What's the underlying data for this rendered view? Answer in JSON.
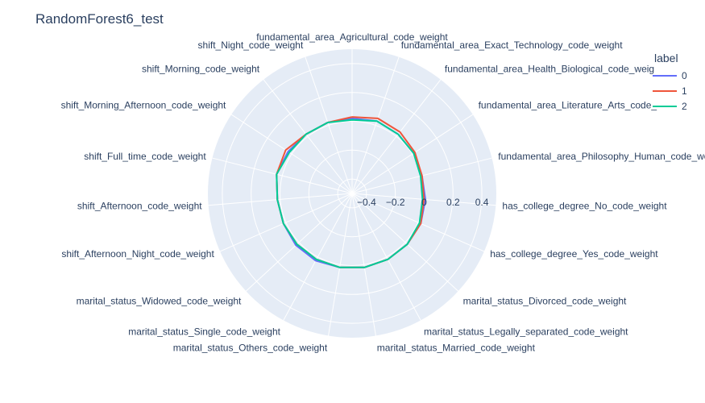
{
  "title": "RandomForest6_test",
  "legend": {
    "title": "label",
    "items": [
      {
        "name": "0",
        "color": "#636efa"
      },
      {
        "name": "1",
        "color": "#EF553B"
      },
      {
        "name": "2",
        "color": "#00cc96"
      }
    ]
  },
  "colors": {
    "plot_bg": "#e5ecf6",
    "grid": "#ffffff",
    "text": "#2a3f5f"
  },
  "chart_data": {
    "type": "polar-line",
    "title": "RandomForest6_test",
    "radial_range": [
      -0.5,
      0.5
    ],
    "radial_ticks": [
      -0.4,
      -0.2,
      0,
      0.2,
      0.4
    ],
    "radial_tick_labels": [
      "−0.4",
      "−0.2",
      "0",
      "0.2",
      "0.4"
    ],
    "angular_direction": "clockwise",
    "categories": [
      "fundamental_area_Agricultural_code_weight",
      "fundamental_area_Exact_Technology_code_weight",
      "fundamental_area_Health_Biological_code_weight",
      "fundamental_area_Literature_Arts_code_weight",
      "fundamental_area_Philosophy_Human_code_weight",
      "has_college_degree_No_code_weight",
      "has_college_degree_Yes_code_weight",
      "marital_status_Divorced_code_weight",
      "marital_status_Legally_separated_code_weight",
      "marital_status_Married_code_weight",
      "marital_status_Others_code_weight",
      "marital_status_Single_code_weight",
      "marital_status_Widowed_code_weight",
      "shift_Afternoon_Night_code_weight",
      "shift_Afternoon_code_weight",
      "shift_Full_time_code_weight",
      "shift_Morning_Afternoon_code_weight",
      "shift_Morning_code_weight",
      "shift_Night_code_weight"
    ],
    "category_labels": [
      "fundamental_area_Agricultural_code_weight",
      "fundamental_area_Exact_Technology_code_weight",
      "fundamental_area_Health_Biological_code_weig",
      "fundamental_area_Literature_Arts_code_",
      "fundamental_area_Philosophy_Human_code_we",
      "has_college_degree_No_code_weight",
      "has_college_degree_Yes_code_weight",
      "marital_status_Divorced_code_weight",
      "marital_status_Legally_separated_code_weight",
      "marital_status_Married_code_weight",
      "marital_status_Others_code_weight",
      "marital_status_Single_code_weight",
      "marital_status_Widowed_code_weight",
      "shift_Afternoon_Night_code_weight",
      "shift_Afternoon_code_weight",
      "shift_Full_time_code_weight",
      "shift_Morning_Afternoon_code_weight",
      "shift_Morning_code_weight",
      "shift_Night_code_weight"
    ],
    "series": [
      {
        "name": "0",
        "color": "#636efa",
        "values": [
          0.02,
          0.03,
          0.02,
          0.01,
          0.0,
          0.01,
          0.02,
          0.02,
          0.02,
          0.02,
          0.02,
          0.03,
          0.03,
          0.02,
          0.02,
          0.04,
          0.03,
          0.02,
          0.02
        ]
      },
      {
        "name": "1",
        "color": "#EF553B",
        "values": [
          0.03,
          0.05,
          0.04,
          0.02,
          0.0,
          0.0,
          0.02,
          0.02,
          0.02,
          0.02,
          0.02,
          0.02,
          0.02,
          0.02,
          0.02,
          0.04,
          0.05,
          0.02,
          0.02
        ]
      },
      {
        "name": "2",
        "color": "#00cc96",
        "values": [
          0.01,
          0.03,
          0.02,
          0.01,
          -0.01,
          -0.01,
          0.01,
          0.02,
          0.02,
          0.02,
          0.02,
          0.02,
          0.02,
          0.02,
          0.02,
          0.04,
          0.02,
          0.02,
          0.02
        ]
      }
    ]
  }
}
